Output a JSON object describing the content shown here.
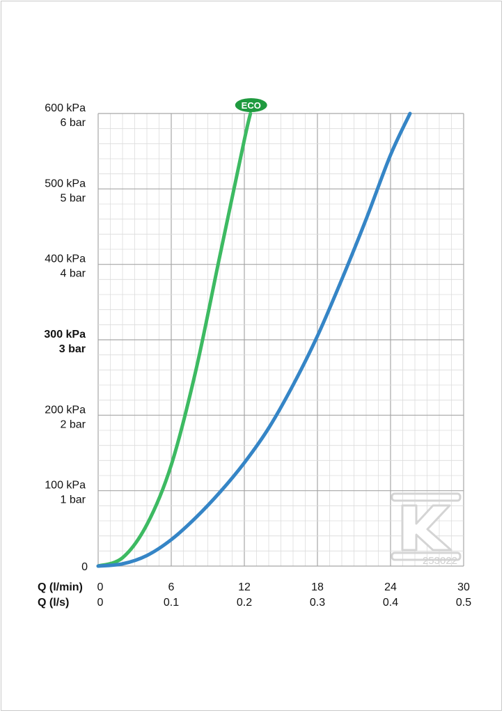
{
  "chart_data": {
    "type": "line",
    "y_labels": [
      {
        "value": 0,
        "line1": "0",
        "line2": "",
        "bold": false
      },
      {
        "value": 100,
        "line1": "100 kPa",
        "line2": "1 bar",
        "bold": false
      },
      {
        "value": 200,
        "line1": "200 kPa",
        "line2": "2 bar",
        "bold": false
      },
      {
        "value": 300,
        "line1": "300 kPa",
        "line2": "3 bar",
        "bold": true
      },
      {
        "value": 400,
        "line1": "400 kPa",
        "line2": "4 bar",
        "bold": false
      },
      {
        "value": 500,
        "line1": "500 kPa",
        "line2": "5 bar",
        "bold": false
      },
      {
        "value": 600,
        "line1": "600 kPa",
        "line2": "6 bar",
        "bold": false
      }
    ],
    "ylim": [
      0,
      600
    ],
    "xlim": [
      0,
      30
    ],
    "x_axis_titles": [
      "Q (l/min)",
      "Q (l/s)"
    ],
    "x_ticks_lmin": [
      "0",
      "6",
      "12",
      "18",
      "24",
      "30"
    ],
    "x_ticks_ls": [
      "0",
      "0.1",
      "0.2",
      "0.3",
      "0.4",
      "0.5"
    ],
    "grid": true,
    "series": [
      {
        "label": "ECO",
        "color": "#3dba62",
        "x": [
          0,
          2,
          4,
          6,
          8,
          10,
          12,
          12.5
        ],
        "y": [
          0,
          11,
          55,
          134,
          258,
          412,
          565,
          600
        ]
      },
      {
        "color": "#3585c6",
        "x": [
          0,
          2,
          4,
          6,
          8,
          10,
          12,
          14,
          16,
          18,
          20,
          22,
          24,
          25.6
        ],
        "y": [
          0,
          3,
          14,
          35,
          64,
          98,
          137,
          183,
          240,
          305,
          380,
          460,
          545,
          600
        ]
      }
    ],
    "watermark_text": "253022",
    "colors": {
      "grid_major": "#a6a6a6",
      "grid_minor": "#dcdcdc",
      "watermark": "#d4d4d4"
    }
  }
}
